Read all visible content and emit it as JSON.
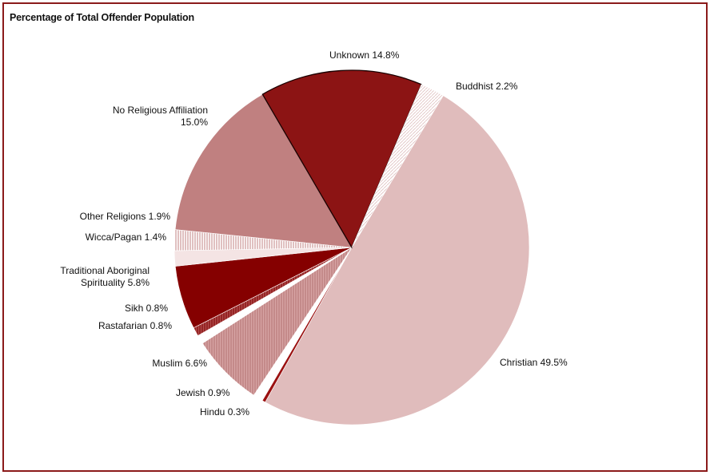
{
  "chart_data": {
    "type": "pie",
    "title": "Percentage of Total Offender Population",
    "unit": "%",
    "slices": [
      {
        "label": "Christian",
        "value": 49.5,
        "label_text": [
          "Christian 49.5%"
        ],
        "color": "#e0bcbc",
        "hatch": false
      },
      {
        "label": "Hindu",
        "value": 0.3,
        "label_text": [
          "Hindu 0.3%"
        ],
        "color": "#9b1111",
        "hatch": false
      },
      {
        "label": "Jewish",
        "value": 0.9,
        "label_text": [
          "Jewish 0.9%"
        ],
        "color": "#ffffff",
        "hatch": false
      },
      {
        "label": "Muslim",
        "value": 6.6,
        "label_text": [
          "Muslim 6.6%"
        ],
        "color": "#d9a3a3",
        "hatch": true
      },
      {
        "label": "Rastafarian",
        "value": 0.8,
        "label_text": [
          "Rastafarian 0.8%"
        ],
        "color": "#ffffff",
        "hatch": false
      },
      {
        "label": "Sikh",
        "value": 0.8,
        "label_text": [
          "Sikh 0.8%"
        ],
        "color": "#a33a3a",
        "hatch": true
      },
      {
        "label": "Traditional Aboriginal Spirituality",
        "value": 5.8,
        "label_text": [
          "Traditional Aboriginal",
          "Spirituality 5.8%"
        ],
        "color": "#850000",
        "hatch": false
      },
      {
        "label": "Wicca/Pagan",
        "value": 1.4,
        "label_text": [
          "Wicca/Pagan 1.4%"
        ],
        "color": "#f4e4e4",
        "hatch": false
      },
      {
        "label": "Other Religions",
        "value": 1.9,
        "label_text": [
          "Other Religions 1.9%"
        ],
        "color": "#e6b8b8",
        "hatch": true
      },
      {
        "label": "No Religious Affiliation",
        "value": 15.0,
        "label_text": [
          "No Religious Affiliation",
          "15.0%"
        ],
        "color": "#c08080",
        "hatch": false
      },
      {
        "label": "Unknown",
        "value": 14.8,
        "label_text": [
          "Unknown 14.8%"
        ],
        "color": "#8c1414",
        "hatch": false
      },
      {
        "label": "Buddhist",
        "value": 2.2,
        "label_text": [
          "Buddhist 2.2%"
        ],
        "color": "#ffffff",
        "hatch": true
      }
    ],
    "legend": "none"
  }
}
